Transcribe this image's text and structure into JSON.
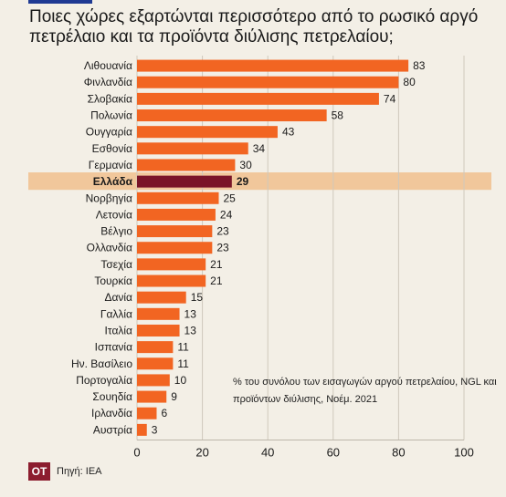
{
  "title": "Ποιες χώρες εξαρτώνται περισσότερο από το ρωσικό αργό πετρέλαιο και τα προϊόντα διύλισης πετρελαίου;",
  "note": "% του συνόλου των εισαγωγών αργού πετρελαίου, NGL και προϊόντων διύλισης, Νοέμ. 2021",
  "logo": "ΟΤ",
  "source": "Πηγή: IEA",
  "colors": {
    "bar": "#f26522",
    "highlight_bar": "#7a1428",
    "highlight_band": "#f1c79b"
  },
  "chart_data": {
    "type": "bar",
    "orientation": "horizontal",
    "categories": [
      "Λιθουανία",
      "Φινλανδία",
      "Σλοβακία",
      "Πολωνία",
      "Ουγγαρία",
      "Εσθονία",
      "Γερμανία",
      "Ελλάδα",
      "Νορβηγία",
      "Λετονία",
      "Βέλγιο",
      "Ολλανδία",
      "Τσεχία",
      "Τουρκία",
      "Δανία",
      "Γαλλία",
      "Ιταλία",
      "Ισπανία",
      "Ην. Βασίλειο",
      "Πορτογαλία",
      "Σουηδία",
      "Ιρλανδία",
      "Αυστρία"
    ],
    "values": [
      83,
      80,
      74,
      58,
      43,
      34,
      30,
      29,
      25,
      24,
      23,
      23,
      21,
      21,
      15,
      13,
      13,
      11,
      11,
      10,
      9,
      6,
      3
    ],
    "highlight": "Ελλάδα",
    "xlim": [
      0,
      100
    ],
    "xticks": [
      0,
      20,
      40,
      60,
      80,
      100
    ],
    "grid": true
  }
}
